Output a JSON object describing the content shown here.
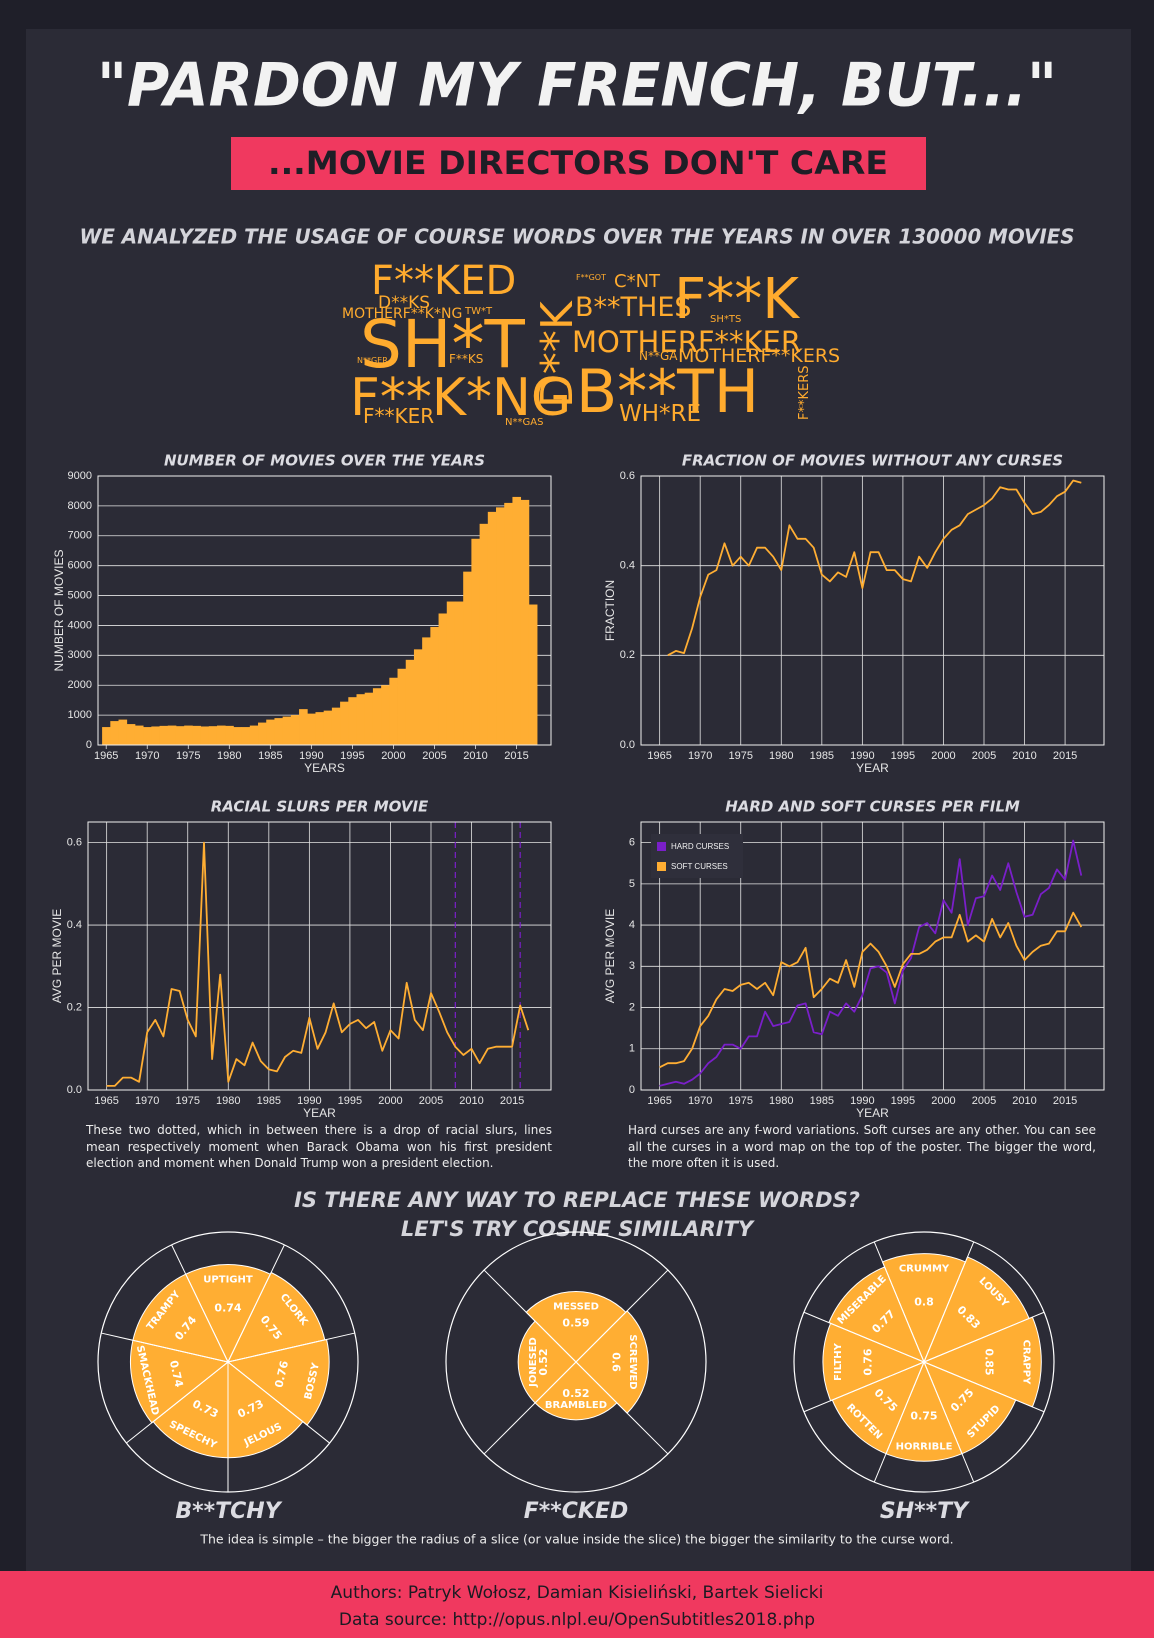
{
  "header": {
    "title": "\"PARDON MY FRENCH, BUT...\"",
    "subtitle": "...MOVIE DIRECTORS DON'T CARE",
    "intro": "WE ANALYZED THE USAGE OF COURSE WORDS OVER THE YEARS IN OVER 130000 MOVIES"
  },
  "word_cloud": [
    "F**KED",
    "D**KS",
    "F**GOT",
    "C*NT",
    "F**K",
    "MOTHERF**K*NG",
    "TW*T",
    "D**K",
    "B**THES",
    "SH*TS",
    "SH*T",
    "MOTHERF**KER",
    "N**GER",
    "F**KS",
    "N**GA",
    "MOTHERF**KERS",
    "F**K*NG",
    "B**TH",
    "F**KER",
    "WH*RE",
    "N**GAS",
    "F**KERS"
  ],
  "chart_data": [
    {
      "type": "bar",
      "title": "NUMBER OF MOVIES OVER THE YEARS",
      "xlabel": "YEARS",
      "ylabel": "NUMBER OF MOVIES",
      "color": "#ffae33",
      "x": [
        1965,
        1966,
        1967,
        1968,
        1969,
        1970,
        1971,
        1972,
        1973,
        1974,
        1975,
        1976,
        1977,
        1978,
        1979,
        1980,
        1981,
        1982,
        1983,
        1984,
        1985,
        1986,
        1987,
        1988,
        1989,
        1990,
        1991,
        1992,
        1993,
        1994,
        1995,
        1996,
        1997,
        1998,
        1999,
        2000,
        2001,
        2002,
        2003,
        2004,
        2005,
        2006,
        2007,
        2008,
        2009,
        2010,
        2011,
        2012,
        2013,
        2014,
        2015,
        2016,
        2017
      ],
      "values": [
        600,
        800,
        850,
        700,
        650,
        600,
        620,
        640,
        650,
        630,
        650,
        640,
        620,
        630,
        650,
        640,
        600,
        600,
        650,
        750,
        850,
        900,
        950,
        1000,
        1200,
        1050,
        1100,
        1150,
        1250,
        1450,
        1600,
        1700,
        1750,
        1900,
        2000,
        2250,
        2550,
        2850,
        3200,
        3600,
        3950,
        4400,
        4800,
        4800,
        5800,
        6900,
        7400,
        7800,
        7950,
        8100,
        8300,
        8200,
        4700
      ],
      "xlim": [
        1964,
        2019.2
      ],
      "xticks": [
        1965,
        1970,
        1975,
        1980,
        1985,
        1990,
        1995,
        2000,
        2005,
        2010,
        2015
      ],
      "ylim": [
        0,
        9000
      ],
      "yticks": [
        0,
        1000,
        2000,
        3000,
        4000,
        5000,
        6000,
        7000,
        8000,
        9000
      ],
      "grid": "y"
    },
    {
      "type": "line",
      "title": "FRACTION OF MOVIES WITHOUT ANY CURSES",
      "xlabel": "YEAR",
      "ylabel": "FRACTION",
      "color": "#ffae33",
      "x": [
        1966,
        1967,
        1968,
        1969,
        1970,
        1971,
        1972,
        1973,
        1974,
        1975,
        1976,
        1977,
        1978,
        1979,
        1980,
        1981,
        1982,
        1983,
        1984,
        1985,
        1986,
        1987,
        1988,
        1989,
        1990,
        1991,
        1992,
        1993,
        1994,
        1995,
        1996,
        1997,
        1998,
        1999,
        2000,
        2001,
        2002,
        2003,
        2004,
        2005,
        2006,
        2007,
        2008,
        2009,
        2010,
        2011,
        2012,
        2013,
        2014,
        2015,
        2016,
        2017
      ],
      "values": [
        0.2,
        0.21,
        0.205,
        0.26,
        0.33,
        0.38,
        0.39,
        0.45,
        0.4,
        0.42,
        0.4,
        0.44,
        0.44,
        0.42,
        0.39,
        0.49,
        0.46,
        0.46,
        0.44,
        0.38,
        0.365,
        0.385,
        0.375,
        0.43,
        0.35,
        0.43,
        0.43,
        0.39,
        0.39,
        0.37,
        0.365,
        0.42,
        0.395,
        0.43,
        0.46,
        0.48,
        0.49,
        0.515,
        0.525,
        0.535,
        0.55,
        0.575,
        0.57,
        0.57,
        0.54,
        0.515,
        0.52,
        0.535,
        0.555,
        0.565,
        0.59,
        0.585
      ],
      "xlim": [
        1962.7,
        2019.8
      ],
      "xticks": [
        1965,
        1970,
        1975,
        1980,
        1985,
        1990,
        1995,
        2000,
        2005,
        2010,
        2015
      ],
      "ylim": [
        0,
        0.6
      ],
      "yticks": [
        {
          "value": 0,
          "label": "0.0"
        },
        0.2,
        0.4,
        0.6
      ],
      "grid": "both"
    },
    {
      "type": "line",
      "title": "RACIAL SLURS PER MOVIE",
      "xlabel": "YEAR",
      "ylabel": "AVG PER MOVIE",
      "color": "#ffae33",
      "x": [
        1965,
        1966,
        1967,
        1968,
        1969,
        1970,
        1971,
        1972,
        1973,
        1974,
        1975,
        1976,
        1977,
        1978,
        1979,
        1980,
        1981,
        1982,
        1983,
        1984,
        1985,
        1986,
        1987,
        1988,
        1989,
        1990,
        1991,
        1992,
        1993,
        1994,
        1995,
        1996,
        1997,
        1998,
        1999,
        2000,
        2001,
        2002,
        2003,
        2004,
        2005,
        2006,
        2007,
        2008,
        2009,
        2010,
        2011,
        2012,
        2013,
        2014,
        2015,
        2016,
        2017
      ],
      "values": [
        0.01,
        0.01,
        0.03,
        0.03,
        0.02,
        0.14,
        0.17,
        0.13,
        0.245,
        0.24,
        0.17,
        0.13,
        0.6,
        0.075,
        0.28,
        0.02,
        0.075,
        0.06,
        0.115,
        0.07,
        0.05,
        0.045,
        0.08,
        0.095,
        0.09,
        0.175,
        0.1,
        0.14,
        0.21,
        0.14,
        0.16,
        0.17,
        0.15,
        0.165,
        0.095,
        0.145,
        0.125,
        0.26,
        0.17,
        0.145,
        0.235,
        0.19,
        0.14,
        0.105,
        0.085,
        0.1,
        0.065,
        0.1,
        0.105,
        0.105,
        0.105,
        0.205,
        0.145
      ],
      "xlim": [
        1962.7,
        2019.8
      ],
      "xticks": [
        1965,
        1970,
        1975,
        1980,
        1985,
        1990,
        1995,
        2000,
        2005,
        2010,
        2015
      ],
      "ylim": [
        0,
        0.65
      ],
      "yticks": [
        {
          "value": 0,
          "label": "0.0"
        },
        0.2,
        0.4,
        0.6
      ],
      "grid": "both",
      "vlines": [
        2008,
        2016
      ],
      "vline_color": "#7a1fc9",
      "note": "These two dotted, which in between there is a drop of racial slurs, lines mean respectively moment when Barack Obama won his first president election and moment when Donald Trump won a president election."
    },
    {
      "type": "line",
      "title": "HARD AND SOFT CURSES PER FILM",
      "xlabel": "YEAR",
      "ylabel": "AVG PER MOVIE",
      "legend": "upper left",
      "x": [
        1965,
        1966,
        1967,
        1968,
        1969,
        1970,
        1971,
        1972,
        1973,
        1974,
        1975,
        1976,
        1977,
        1978,
        1979,
        1980,
        1981,
        1982,
        1983,
        1984,
        1985,
        1986,
        1987,
        1988,
        1989,
        1990,
        1991,
        1992,
        1993,
        1994,
        1995,
        1996,
        1997,
        1998,
        1999,
        2000,
        2001,
        2002,
        2003,
        2004,
        2005,
        2006,
        2007,
        2008,
        2009,
        2010,
        2011,
        2012,
        2013,
        2014,
        2015,
        2016,
        2017
      ],
      "series": [
        {
          "name": "HARD CURSES",
          "color": "#7a1fc9",
          "values": [
            0.1,
            0.15,
            0.2,
            0.15,
            0.25,
            0.4,
            0.65,
            0.8,
            1.1,
            1.1,
            1.0,
            1.3,
            1.3,
            1.9,
            1.55,
            1.6,
            1.65,
            2.05,
            2.1,
            1.4,
            1.35,
            1.9,
            1.8,
            2.1,
            1.9,
            2.3,
            2.95,
            3.0,
            2.85,
            2.1,
            2.9,
            3.2,
            3.95,
            4.05,
            3.8,
            4.6,
            4.3,
            5.6,
            4.0,
            4.65,
            4.7,
            5.2,
            4.85,
            5.5,
            4.8,
            4.2,
            4.25,
            4.75,
            4.9,
            5.35,
            5.1,
            6.05,
            5.2
          ]
        },
        {
          "name": "SOFT CURSES",
          "color": "#ffae33",
          "values": [
            0.55,
            0.65,
            0.65,
            0.7,
            1.0,
            1.55,
            1.8,
            2.2,
            2.45,
            2.4,
            2.55,
            2.6,
            2.45,
            2.6,
            2.3,
            3.1,
            3.0,
            3.1,
            3.45,
            2.25,
            2.45,
            2.7,
            2.6,
            3.15,
            2.5,
            3.35,
            3.55,
            3.35,
            3.0,
            2.5,
            3.05,
            3.3,
            3.3,
            3.4,
            3.6,
            3.7,
            3.7,
            4.25,
            3.6,
            3.75,
            3.6,
            4.15,
            3.7,
            4.05,
            3.5,
            3.15,
            3.35,
            3.5,
            3.55,
            3.85,
            3.85,
            4.3,
            3.95
          ]
        }
      ],
      "xlim": [
        1962.7,
        2019.8
      ],
      "xticks": [
        1965,
        1970,
        1975,
        1980,
        1985,
        1990,
        1995,
        2000,
        2005,
        2010,
        2015
      ],
      "ylim": [
        0,
        6.5
      ],
      "yticks": [
        0,
        1,
        2,
        3,
        4,
        5,
        6
      ],
      "grid": "both",
      "note": "Hard curses are any f-word variations. Soft curses are any other. You can see all the curses in a word map on the top of the poster. The bigger the word, the more often it is used."
    },
    {
      "type": "polar",
      "title": "B**TCHY",
      "color": "#ffae33",
      "rlim": [
        0.2,
        0.92
      ],
      "categories": [
        "UPTIGHT",
        "CLORK",
        "BOSSY",
        "JELOUS",
        "SPEECHY",
        "SMACKHEAD",
        "TRAMPY"
      ],
      "values": [
        0.74,
        0.75,
        0.76,
        0.73,
        0.73,
        0.74,
        0.74
      ]
    },
    {
      "type": "polar",
      "title": "F**CKED",
      "color": "#ffae33",
      "rlim": [
        0.2,
        0.92
      ],
      "categories": [
        "MESSED",
        "SCREWED",
        "BRAMBLED",
        "JONESED"
      ],
      "values": [
        0.59,
        0.6,
        0.52,
        0.52
      ]
    },
    {
      "type": "polar",
      "title": "SH**TY",
      "color": "#ffae33",
      "rlim": [
        0.2,
        0.92
      ],
      "categories": [
        "CRUMMY",
        "LOUSY",
        "CRAPPY",
        "STUPID",
        "HORRIBLE",
        "ROTTEN",
        "FILTHY",
        "MISERABLE"
      ],
      "values": [
        0.8,
        0.83,
        0.85,
        0.75,
        0.75,
        0.75,
        0.76,
        0.77
      ]
    }
  ],
  "similarity": {
    "title1": "IS THERE ANY WAY TO REPLACE THESE WORDS?",
    "title2": "LET'S TRY COSINE SIMILARITY",
    "note": "The idea is simple – the bigger the radius of a slice (or value inside the slice) the bigger the similarity to the curse word."
  },
  "footer": {
    "authors": "Authors: Patryk Wołosz, Damian Kisieliński, Bartek Sielicki",
    "source": "Data source: http://opus.nlpl.eu/OpenSubtitles2018.php"
  }
}
